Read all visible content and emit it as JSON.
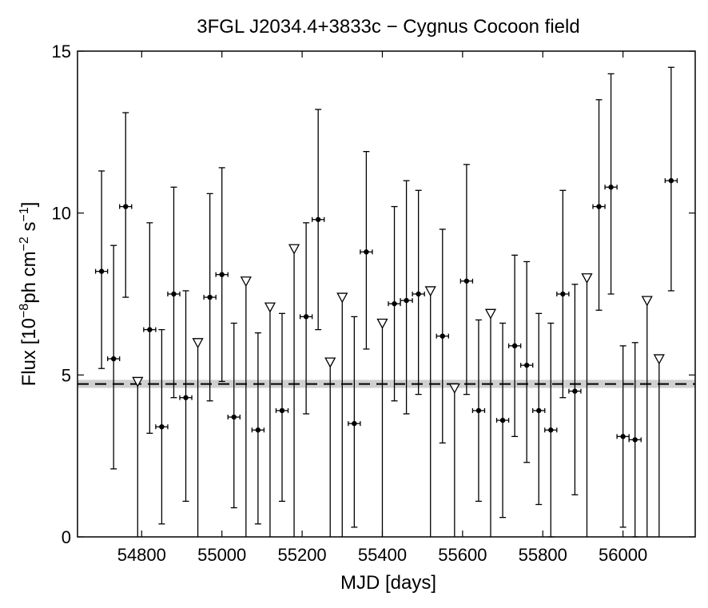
{
  "chart_data": {
    "type": "scatter",
    "title": "3FGL J2034.4+3833c − Cygnus Cocoon field",
    "xlabel": "MJD [days]",
    "ylabel": {
      "prefix": "Flux [10",
      "exp1": "−8",
      "mid": "ph cm",
      "exp2": "−2",
      "mid2": " s",
      "exp3": "−1",
      "suffix": "]"
    },
    "xlim": [
      54640,
      56180
    ],
    "ylim": [
      0,
      15
    ],
    "xticks": [
      54800,
      55000,
      55200,
      55400,
      55600,
      55800,
      56000
    ],
    "xtick_labels": [
      "54800",
      "55000",
      "55200",
      "55400",
      "55600",
      "55800",
      "56000"
    ],
    "yticks": [
      0,
      5,
      10,
      15
    ],
    "ytick_labels": [
      "0",
      "5",
      "10",
      "15"
    ],
    "reference_level": {
      "value": 4.72,
      "band": [
        4.6,
        4.85
      ]
    },
    "bin_halfwidth_days": 15,
    "detections": [
      {
        "x": 54700,
        "y": 8.2,
        "ylow": 5.2,
        "yhigh": 11.3
      },
      {
        "x": 54730,
        "y": 5.5,
        "ylow": 2.1,
        "yhigh": 9.0
      },
      {
        "x": 54760,
        "y": 10.2,
        "ylow": 7.4,
        "yhigh": 13.1
      },
      {
        "x": 54820,
        "y": 6.4,
        "ylow": 3.2,
        "yhigh": 9.7
      },
      {
        "x": 54850,
        "y": 3.4,
        "ylow": 0.4,
        "yhigh": 6.4
      },
      {
        "x": 54880,
        "y": 7.5,
        "ylow": 4.3,
        "yhigh": 10.8
      },
      {
        "x": 54910,
        "y": 4.3,
        "ylow": 1.1,
        "yhigh": 7.6
      },
      {
        "x": 54970,
        "y": 7.4,
        "ylow": 4.2,
        "yhigh": 10.6
      },
      {
        "x": 55000,
        "y": 8.1,
        "ylow": 4.8,
        "yhigh": 11.4
      },
      {
        "x": 55030,
        "y": 3.7,
        "ylow": 0.9,
        "yhigh": 6.6
      },
      {
        "x": 55090,
        "y": 3.3,
        "ylow": 0.4,
        "yhigh": 6.3
      },
      {
        "x": 55150,
        "y": 3.9,
        "ylow": 1.1,
        "yhigh": 6.9
      },
      {
        "x": 55210,
        "y": 6.8,
        "ylow": 3.8,
        "yhigh": 9.7
      },
      {
        "x": 55240,
        "y": 9.8,
        "ylow": 6.4,
        "yhigh": 13.2
      },
      {
        "x": 55330,
        "y": 3.5,
        "ylow": 0.3,
        "yhigh": 6.8
      },
      {
        "x": 55360,
        "y": 8.8,
        "ylow": 5.8,
        "yhigh": 11.9
      },
      {
        "x": 55430,
        "y": 7.2,
        "ylow": 4.2,
        "yhigh": 10.2
      },
      {
        "x": 55460,
        "y": 7.3,
        "ylow": 3.8,
        "yhigh": 11.0
      },
      {
        "x": 55490,
        "y": 7.5,
        "ylow": 4.4,
        "yhigh": 10.7
      },
      {
        "x": 55550,
        "y": 6.2,
        "ylow": 2.9,
        "yhigh": 9.5
      },
      {
        "x": 55610,
        "y": 7.9,
        "ylow": 4.4,
        "yhigh": 11.5
      },
      {
        "x": 55640,
        "y": 3.9,
        "ylow": 1.1,
        "yhigh": 6.7
      },
      {
        "x": 55700,
        "y": 3.6,
        "ylow": 0.6,
        "yhigh": 6.6
      },
      {
        "x": 55730,
        "y": 5.9,
        "ylow": 3.1,
        "yhigh": 8.7
      },
      {
        "x": 55760,
        "y": 5.3,
        "ylow": 2.3,
        "yhigh": 8.5
      },
      {
        "x": 55790,
        "y": 3.9,
        "ylow": 1.0,
        "yhigh": 6.9
      },
      {
        "x": 55820,
        "y": 3.3,
        "ylow": 0.0,
        "yhigh": 6.6
      },
      {
        "x": 55850,
        "y": 7.5,
        "ylow": 4.3,
        "yhigh": 10.7
      },
      {
        "x": 55880,
        "y": 4.5,
        "ylow": 1.3,
        "yhigh": 7.8
      },
      {
        "x": 55940,
        "y": 10.2,
        "ylow": 7.0,
        "yhigh": 13.5
      },
      {
        "x": 55970,
        "y": 10.8,
        "ylow": 7.5,
        "yhigh": 14.3
      },
      {
        "x": 56000,
        "y": 3.1,
        "ylow": 0.3,
        "yhigh": 5.9
      },
      {
        "x": 56030,
        "y": 3.0,
        "ylow": 0.0,
        "yhigh": 6.0
      },
      {
        "x": 56120,
        "y": 11.0,
        "ylow": 7.6,
        "yhigh": 14.5
      }
    ],
    "upper_limits": [
      {
        "x": 54790,
        "y": 4.8
      },
      {
        "x": 54940,
        "y": 6.0
      },
      {
        "x": 55060,
        "y": 7.9
      },
      {
        "x": 55120,
        "y": 7.1
      },
      {
        "x": 55180,
        "y": 8.9
      },
      {
        "x": 55270,
        "y": 5.4
      },
      {
        "x": 55300,
        "y": 7.4
      },
      {
        "x": 55400,
        "y": 6.6
      },
      {
        "x": 55520,
        "y": 7.6
      },
      {
        "x": 55580,
        "y": 4.6
      },
      {
        "x": 55670,
        "y": 6.9
      },
      {
        "x": 55910,
        "y": 8.0
      },
      {
        "x": 56060,
        "y": 7.3
      },
      {
        "x": 56090,
        "y": 5.5
      }
    ]
  }
}
